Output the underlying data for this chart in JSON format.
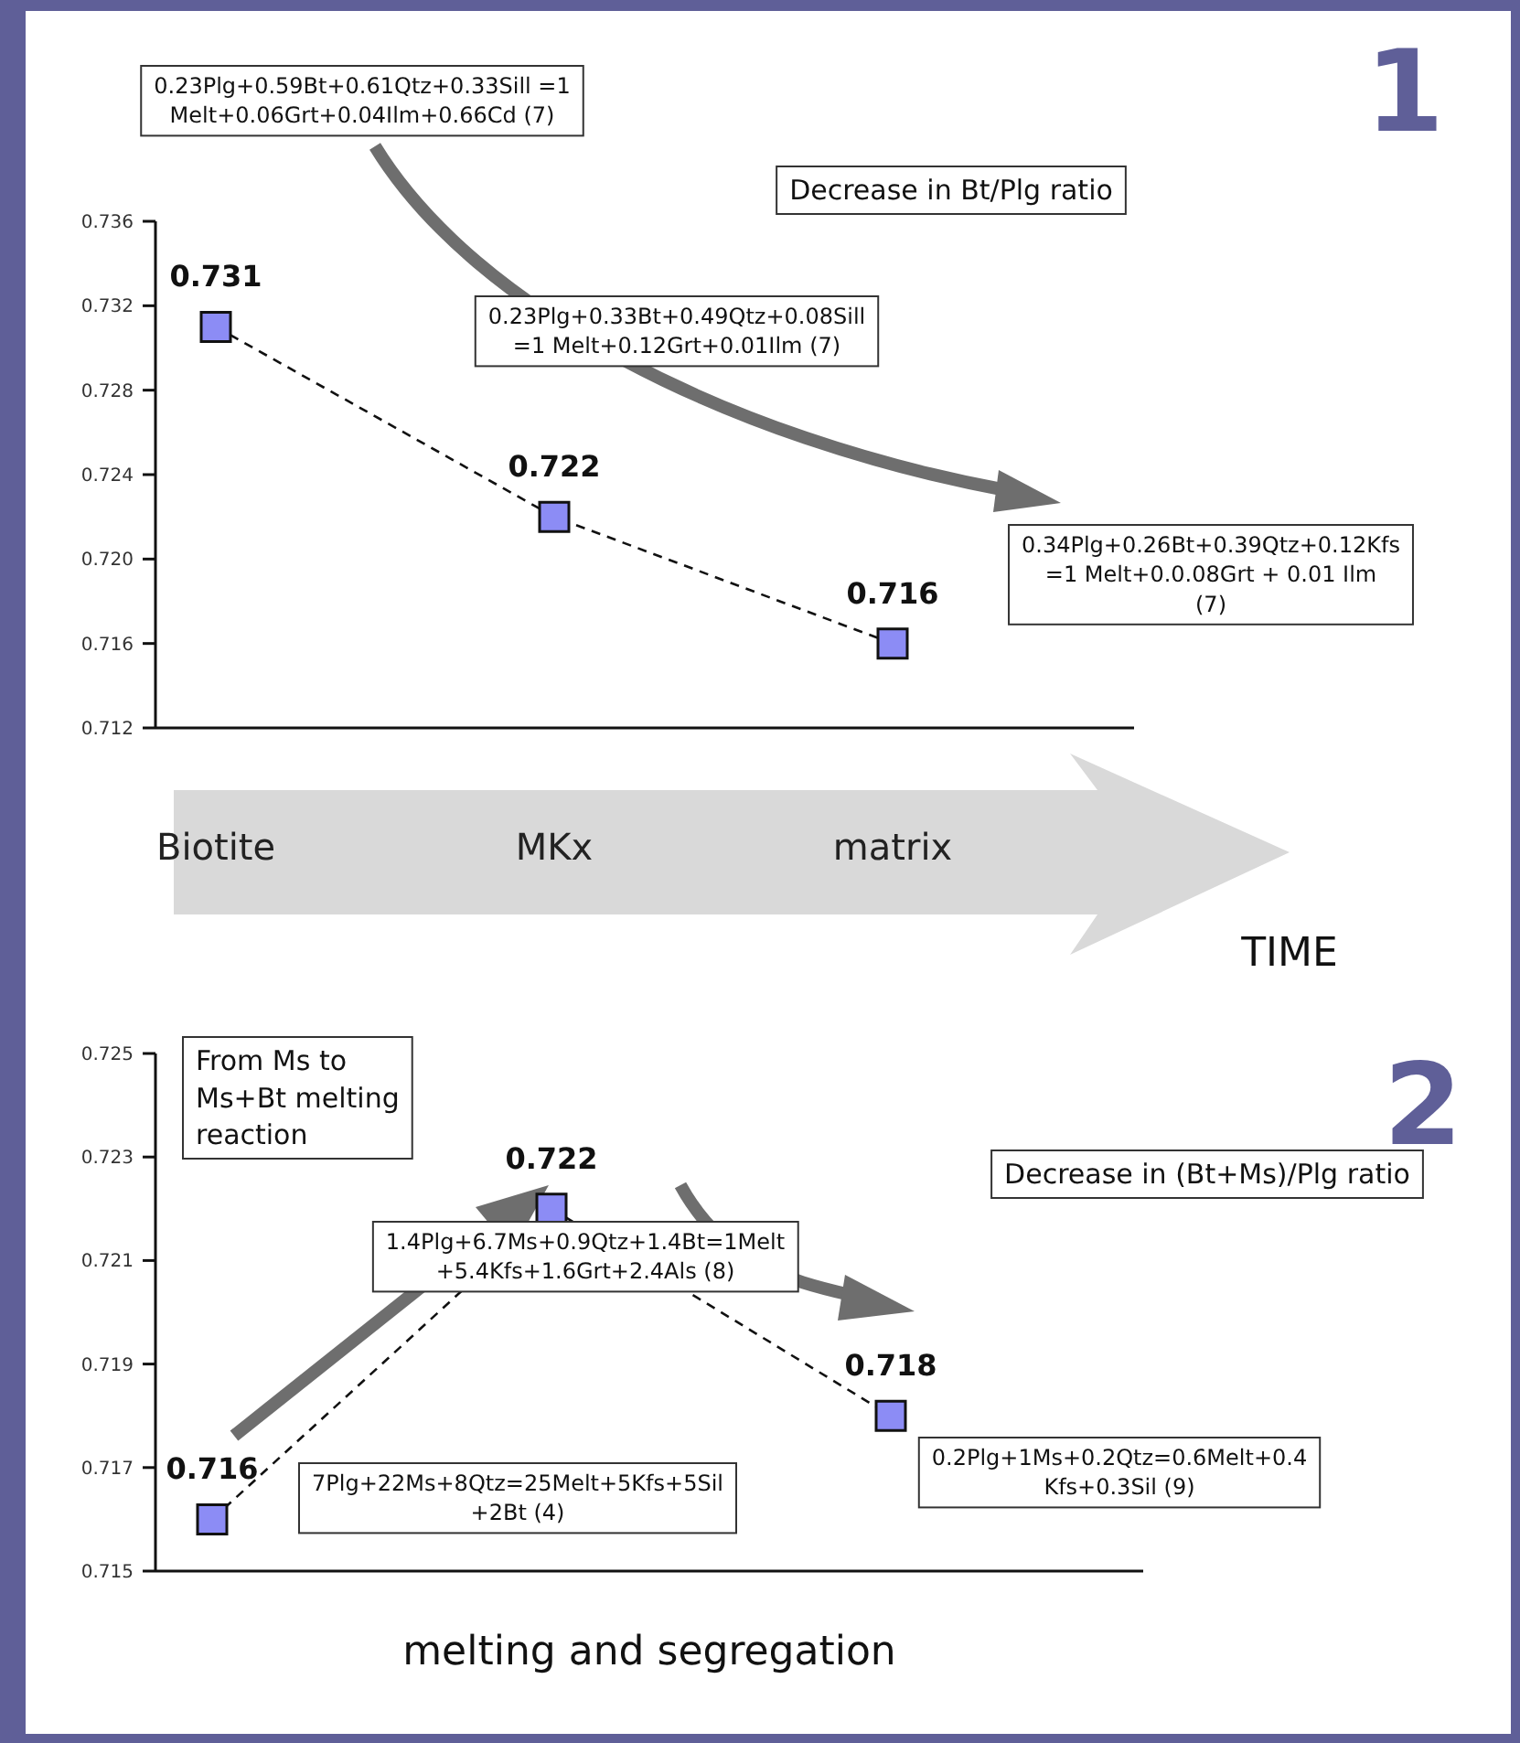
{
  "chart_data": [
    {
      "type": "line",
      "xlabel": "TIME",
      "categories": [
        "Biotite",
        "MKx",
        "matrix"
      ],
      "series": [
        {
          "color": "#8c8cf5",
          "values": [
            0.731,
            0.722,
            0.716
          ]
        }
      ],
      "ylim": [
        0.712,
        0.736
      ],
      "yticks": [
        0.712,
        0.716,
        {
          "value": 0.72,
          "label": "0.720"
        },
        0.724,
        0.728,
        0.732,
        0.736
      ],
      "marker": "square",
      "line_style": "dashed",
      "data_labels": true,
      "annotations": [
        "1",
        "0.23Plg+0.59Bt+0.61Qtz+0.33Sill =1 Melt+0.06Grt+0.04Ilm+0.66Cd (7)",
        "Decrease in Bt/Plg ratio",
        "0.23Plg+0.33Bt+0.49Qtz+0.08Sill =1 Melt+0.12Grt+0.01Ilm (7)",
        "0.34Plg+0.26Bt+0.39Qtz+0.12Kfs =1 Melt+0.0.08Grt + 0.01 Ilm (7)"
      ]
    },
    {
      "type": "line",
      "xlabel": "melting and segregation",
      "categories": [
        null,
        null,
        null
      ],
      "series": [
        {
          "color": "#8c8cf5",
          "values": [
            0.716,
            0.722,
            0.718
          ]
        }
      ],
      "ylim": [
        0.715,
        0.725
      ],
      "yticks": [
        0.715,
        0.717,
        0.719,
        0.721,
        0.723,
        0.725
      ],
      "marker": "square",
      "line_style": "dashed",
      "data_labels": true,
      "annotations": [
        "2",
        "From Ms to Ms+Bt melting reaction",
        "Decrease in (Bt+Ms)/Plg ratio",
        "1.4Plg+6.7Ms+0.9Qtz+1.4Bt=1Melt +5.4Kfs+1.6Grt+2.4Als (8)",
        "7Plg+22Ms+8Qtz=25Melt+5Kfs+5Sil +2Bt (4)",
        "0.2Plg+1Ms+0.2Qtz=0.6Melt+0.4 Kfs+0.3Sil (9)"
      ]
    }
  ]
}
